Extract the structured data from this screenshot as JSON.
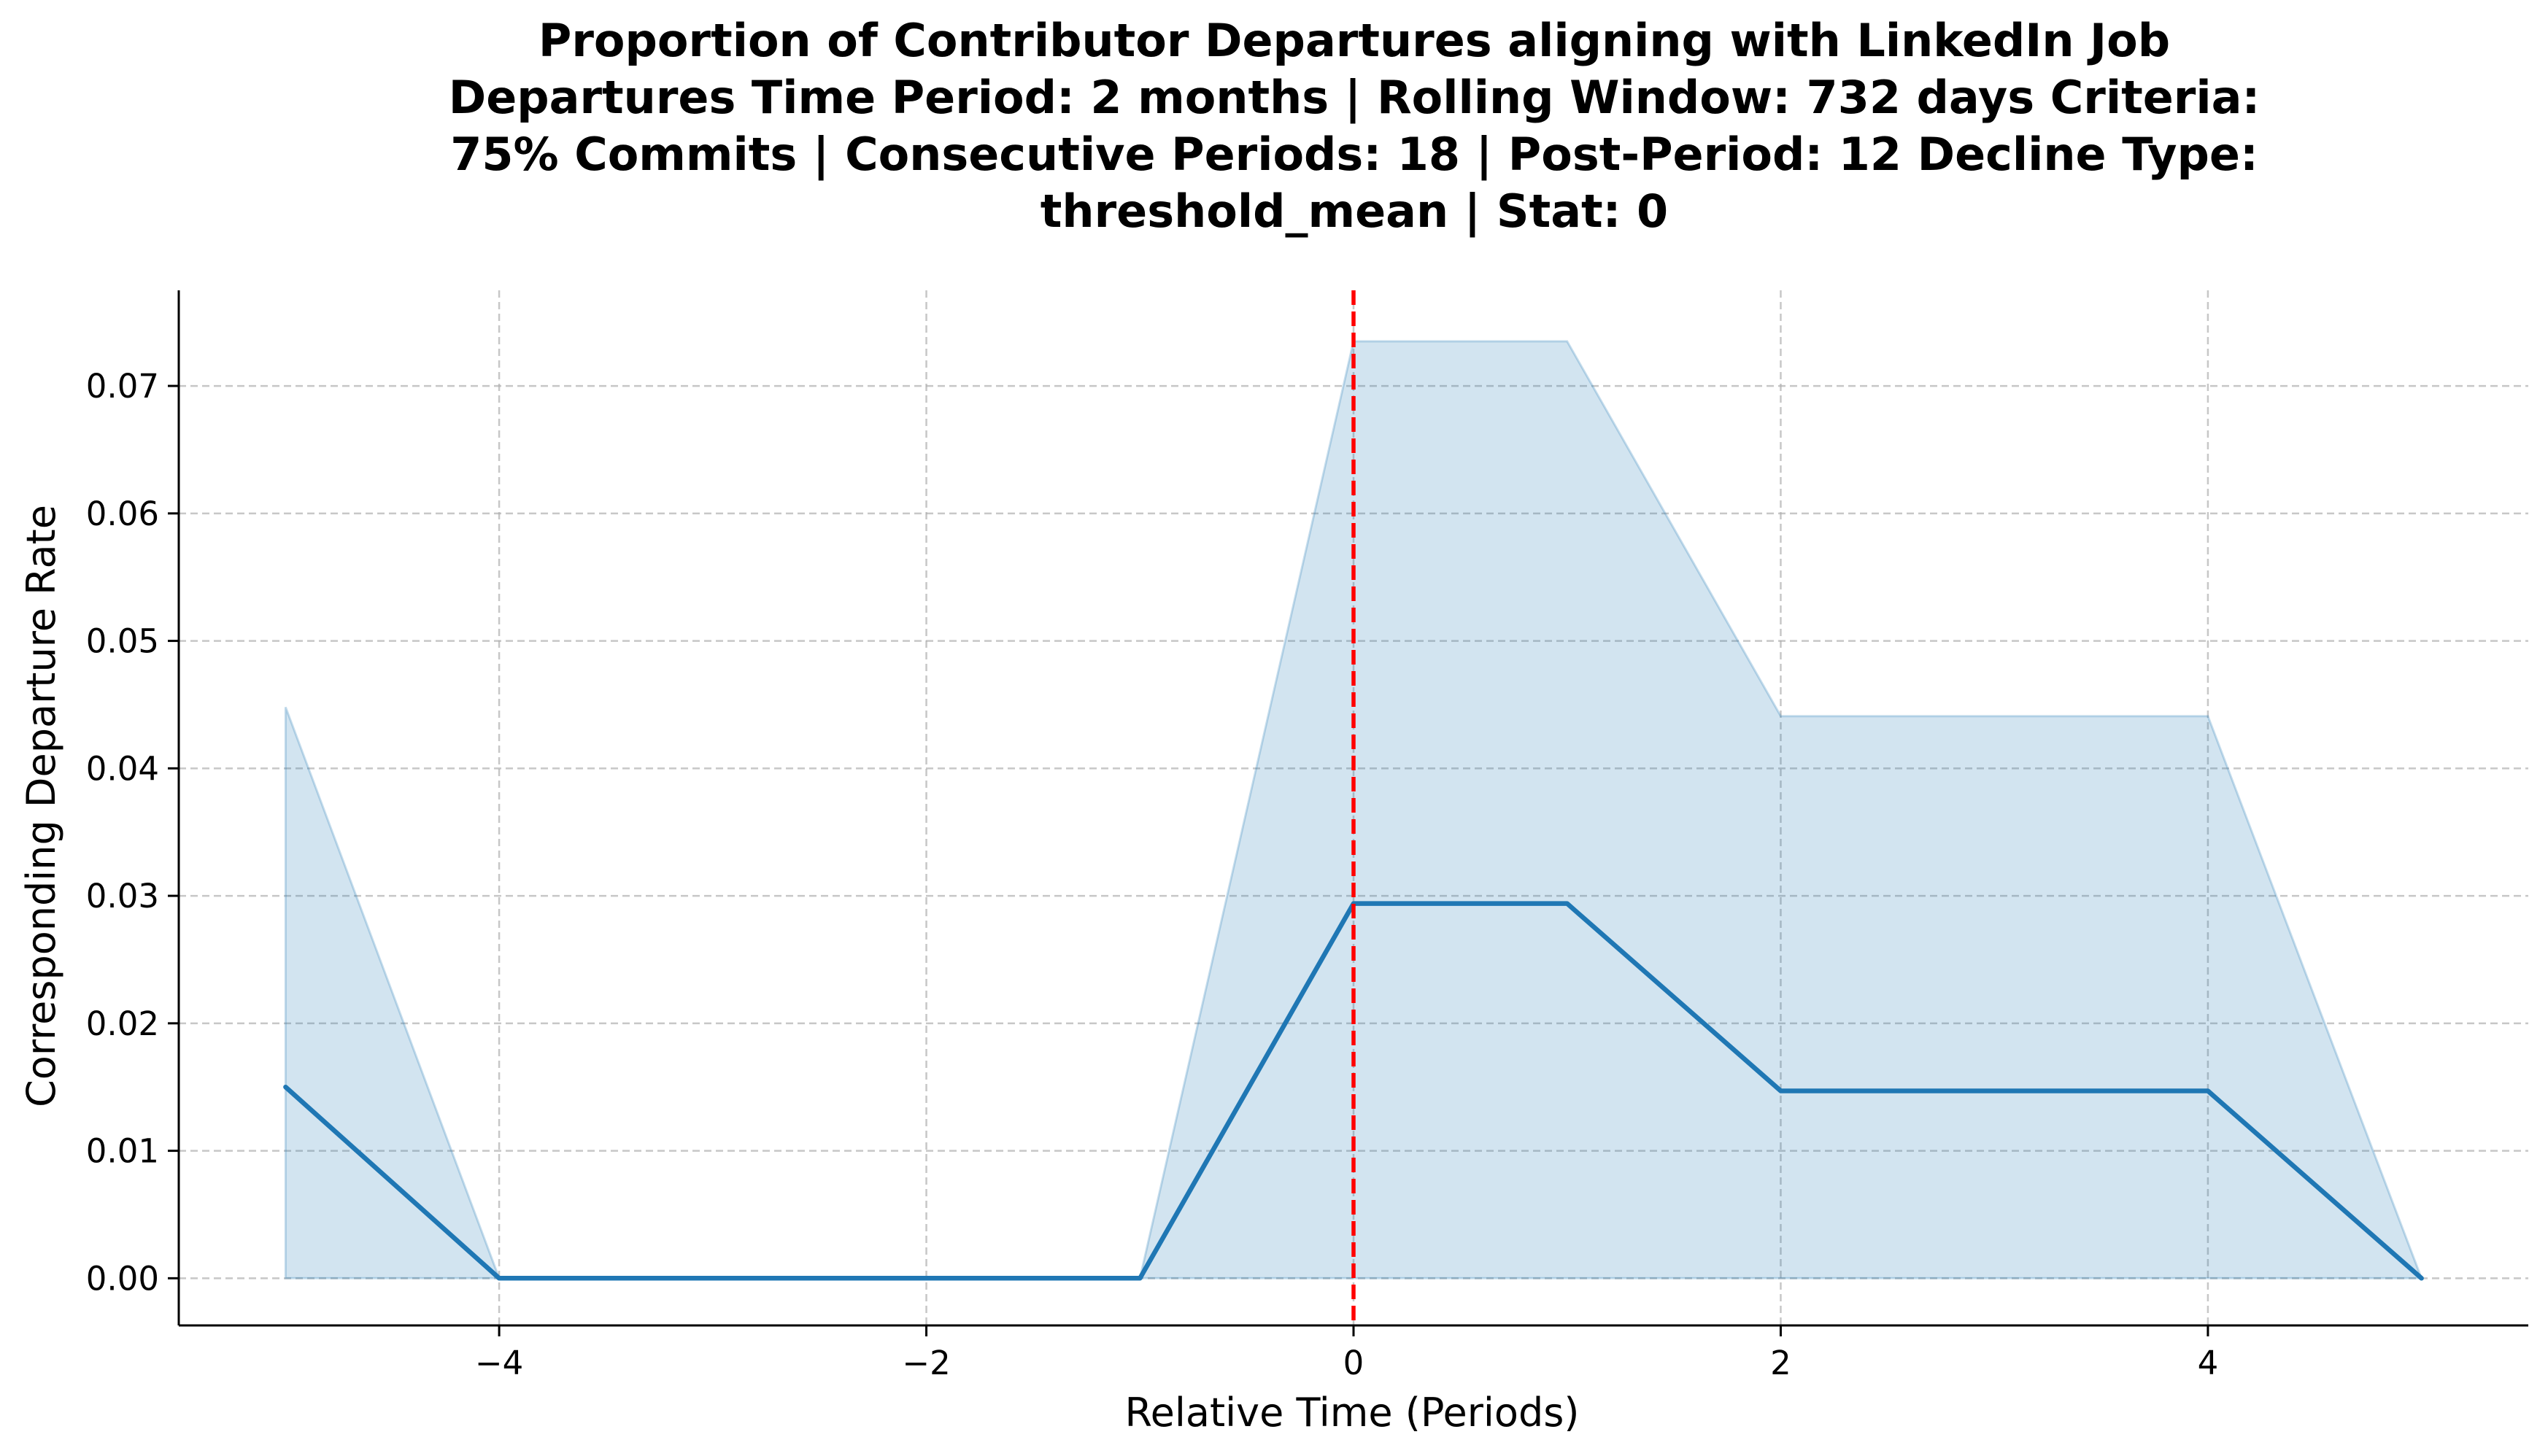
{
  "chart_data": {
    "type": "line",
    "title_lines": [
      "Proportion of Contributor Departures aligning with LinkedIn Job",
      "Departures Time Period: 2 months | Rolling Window: 732 days  Criteria:",
      "75% Commits | Consecutive Periods: 18 | Post-Period: 12 Decline Type:",
      "threshold_mean | Stat: 0"
    ],
    "xlabel": "Relative Time (Periods)",
    "ylabel": "Corresponding Departure Rate",
    "xlim": [
      -5.5,
      5.5
    ],
    "ylim": [
      -0.0037,
      0.0775
    ],
    "x_ticks": [
      -4,
      -2,
      0,
      2,
      4
    ],
    "x_tick_labels": [
      "−4",
      "−2",
      "0",
      "2",
      "4"
    ],
    "y_ticks": [
      0.0,
      0.01,
      0.02,
      0.03,
      0.04,
      0.05,
      0.06,
      0.07
    ],
    "y_tick_labels": [
      "0.00",
      "0.01",
      "0.02",
      "0.03",
      "0.04",
      "0.05",
      "0.06",
      "0.07"
    ],
    "grid": true,
    "series": [
      {
        "x": [
          -5,
          -4,
          -3,
          -2,
          -1,
          0,
          1,
          2,
          3,
          4,
          5
        ],
        "y": [
          0.015,
          0.0,
          0.0,
          0.0,
          0.0,
          0.0294,
          0.0294,
          0.0147,
          0.0147,
          0.0147,
          0.0
        ],
        "ci_lower": [
          0.0,
          0.0,
          0.0,
          0.0,
          0.0,
          0.0,
          0.0,
          0.0,
          0.0,
          0.0,
          0.0
        ],
        "ci_upper": [
          0.0448,
          0.0,
          0.0,
          0.0,
          0.0,
          0.0735,
          0.0735,
          0.0441,
          0.0441,
          0.0441,
          0.0
        ],
        "color": "#1f77b4"
      }
    ],
    "vline": {
      "x": 0,
      "color": "#ff0000",
      "style": "dashed"
    }
  }
}
